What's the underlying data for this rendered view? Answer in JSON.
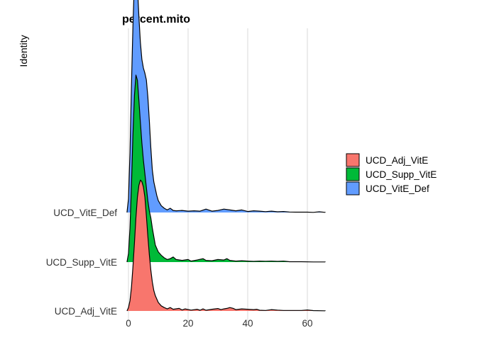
{
  "chart_data": {
    "type": "ridgeline",
    "title": "percent.mito",
    "xlabel": "",
    "ylabel": "Identity",
    "xlim": [
      -1,
      67
    ],
    "x_ticks": [
      0,
      20,
      40,
      60
    ],
    "grid": "vertical",
    "legend_position": "right",
    "categories": [
      "UCD_Adj_VitE",
      "UCD_Supp_VitE",
      "UCD_VitE_Def"
    ],
    "series": [
      {
        "name": "UCD_Adj_VitE",
        "color": "#F8766D",
        "density_points": [
          [
            -0.5,
            0
          ],
          [
            0,
            0.02
          ],
          [
            0.5,
            0.06
          ],
          [
            1,
            0.14
          ],
          [
            1.5,
            0.26
          ],
          [
            2,
            0.4
          ],
          [
            2.5,
            0.55
          ],
          [
            3,
            0.67
          ],
          [
            3.5,
            0.74
          ],
          [
            4,
            0.77
          ],
          [
            4.5,
            0.76
          ],
          [
            5,
            0.73
          ],
          [
            5.5,
            0.67
          ],
          [
            6,
            0.56
          ],
          [
            6.5,
            0.44
          ],
          [
            7,
            0.33
          ],
          [
            7.5,
            0.24
          ],
          [
            8,
            0.17
          ],
          [
            8.5,
            0.12
          ],
          [
            9,
            0.09
          ],
          [
            10,
            0.05
          ],
          [
            11,
            0.03
          ],
          [
            12,
            0.02
          ],
          [
            13,
            0.012
          ],
          [
            14,
            0.02
          ],
          [
            15,
            0.01
          ],
          [
            17,
            0.015
          ],
          [
            18,
            0.006
          ],
          [
            19,
            0.012
          ],
          [
            21,
            0.005
          ],
          [
            23,
            0.01
          ],
          [
            24,
            0.004
          ],
          [
            25,
            0.012
          ],
          [
            26,
            0.004
          ],
          [
            28,
            0.01
          ],
          [
            30,
            0.014
          ],
          [
            31,
            0.008
          ],
          [
            32,
            0.012
          ],
          [
            33,
            0.015
          ],
          [
            34,
            0.02
          ],
          [
            35,
            0.016
          ],
          [
            36,
            0.008
          ],
          [
            38,
            0.012
          ],
          [
            40,
            0.01
          ],
          [
            42,
            0.008
          ],
          [
            43,
            0.01
          ],
          [
            44,
            0.004
          ],
          [
            46,
            0.003
          ],
          [
            48,
            0.008
          ],
          [
            50,
            0.005
          ],
          [
            52,
            0.003
          ],
          [
            55,
            0.003
          ],
          [
            58,
            0.003
          ],
          [
            60,
            0.006
          ],
          [
            62,
            0.002
          ],
          [
            66,
            0.001
          ]
        ]
      },
      {
        "name": "UCD_Supp_VitE",
        "color": "#00BA38",
        "density_points": [
          [
            -0.5,
            0
          ],
          [
            0,
            0.05
          ],
          [
            0.5,
            0.2
          ],
          [
            1,
            0.45
          ],
          [
            1.5,
            0.75
          ],
          [
            2,
            0.98
          ],
          [
            2.5,
            1.1
          ],
          [
            3,
            1.07
          ],
          [
            3.5,
            0.95
          ],
          [
            4,
            0.82
          ],
          [
            4.5,
            0.7
          ],
          [
            5,
            0.6
          ],
          [
            5.5,
            0.52
          ],
          [
            6,
            0.44
          ],
          [
            6.5,
            0.36
          ],
          [
            7,
            0.3
          ],
          [
            7.5,
            0.26
          ],
          [
            8,
            0.2
          ],
          [
            8.5,
            0.15
          ],
          [
            9,
            0.1
          ],
          [
            10,
            0.06
          ],
          [
            11,
            0.04
          ],
          [
            12,
            0.025
          ],
          [
            13,
            0.015
          ],
          [
            14,
            0.02
          ],
          [
            15,
            0.03
          ],
          [
            16,
            0.015
          ],
          [
            18,
            0.01
          ],
          [
            20,
            0.015
          ],
          [
            21,
            0.006
          ],
          [
            23,
            0.012
          ],
          [
            25,
            0.02
          ],
          [
            26,
            0.01
          ],
          [
            28,
            0.008
          ],
          [
            30,
            0.015
          ],
          [
            32,
            0.012
          ],
          [
            33,
            0.02
          ],
          [
            34,
            0.01
          ],
          [
            36,
            0.006
          ],
          [
            38,
            0.008
          ],
          [
            40,
            0.006
          ],
          [
            42,
            0.004
          ],
          [
            44,
            0.006
          ],
          [
            46,
            0.005
          ],
          [
            48,
            0.006
          ],
          [
            50,
            0.004
          ],
          [
            52,
            0.006
          ],
          [
            54,
            0.002
          ],
          [
            58,
            0.002
          ],
          [
            62,
            0.001
          ],
          [
            66,
            0.001
          ]
        ]
      },
      {
        "name": "UCD_VitE_Def",
        "color": "#619CFF",
        "density_points": [
          [
            -0.5,
            0
          ],
          [
            0,
            0.08
          ],
          [
            0.5,
            0.35
          ],
          [
            1,
            0.75
          ],
          [
            1.5,
            1.1
          ],
          [
            2,
            1.37
          ],
          [
            2.5,
            1.43
          ],
          [
            3,
            1.33
          ],
          [
            3.5,
            1.15
          ],
          [
            4,
            1
          ],
          [
            4.5,
            0.9
          ],
          [
            5,
            0.85
          ],
          [
            5.5,
            0.82
          ],
          [
            6,
            0.78
          ],
          [
            6.5,
            0.68
          ],
          [
            7,
            0.54
          ],
          [
            7.5,
            0.38
          ],
          [
            8,
            0.25
          ],
          [
            8.5,
            0.18
          ],
          [
            9,
            0.14
          ],
          [
            9.5,
            0.1
          ],
          [
            10,
            0.07
          ],
          [
            11,
            0.04
          ],
          [
            12,
            0.025
          ],
          [
            13,
            0.015
          ],
          [
            14,
            0.025
          ],
          [
            15,
            0.012
          ],
          [
            16,
            0.01
          ],
          [
            18,
            0.012
          ],
          [
            20,
            0.008
          ],
          [
            22,
            0.01
          ],
          [
            24,
            0.008
          ],
          [
            26,
            0.02
          ],
          [
            28,
            0.008
          ],
          [
            30,
            0.012
          ],
          [
            32,
            0.02
          ],
          [
            34,
            0.015
          ],
          [
            36,
            0.01
          ],
          [
            38,
            0.015
          ],
          [
            40,
            0.006
          ],
          [
            42,
            0.01
          ],
          [
            44,
            0.008
          ],
          [
            46,
            0.005
          ],
          [
            48,
            0.008
          ],
          [
            50,
            0.004
          ],
          [
            52,
            0.006
          ],
          [
            54,
            0.003
          ],
          [
            56,
            0.002
          ],
          [
            60,
            0.002
          ],
          [
            62,
            0.001
          ],
          [
            64,
            0.004
          ],
          [
            66,
            0.001
          ]
        ]
      }
    ]
  }
}
